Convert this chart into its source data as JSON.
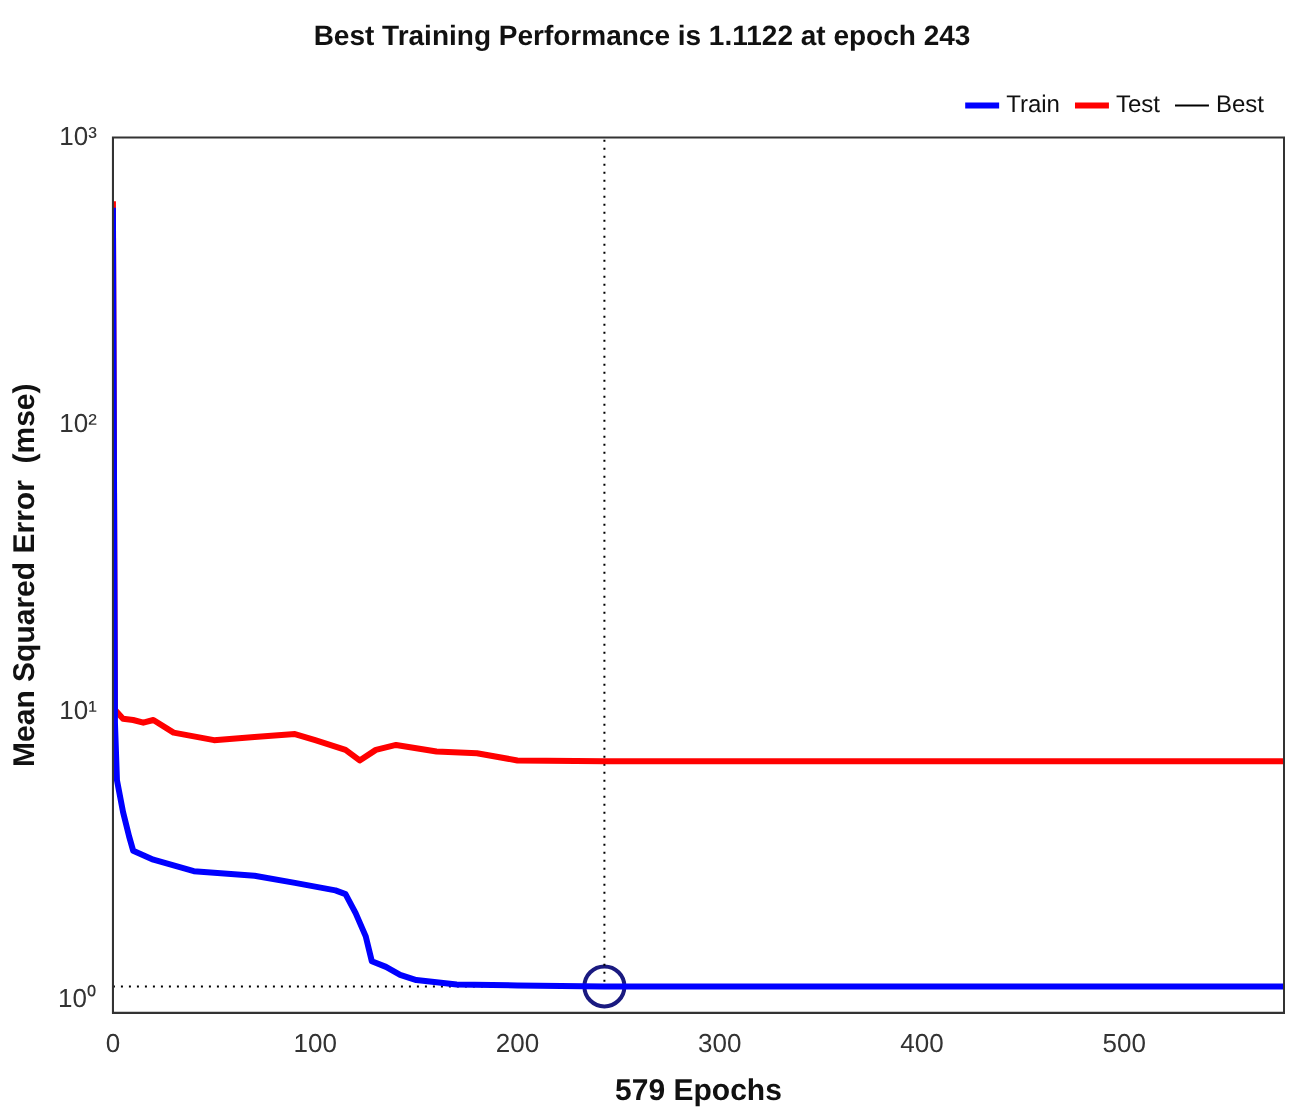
{
  "chart_data": {
    "type": "line",
    "title": "Best Training Performance is 1.1122 at epoch 243",
    "xlabel": "579 Epochs",
    "ylabel": "Mean Squared Error  (mse)",
    "log": "y",
    "xlim": [
      0,
      579
    ],
    "xticks": [
      0,
      100,
      200,
      300,
      400,
      500
    ],
    "ylim": [
      0.9,
      1000
    ],
    "yticks": [
      {
        "value": 1,
        "label": "10⁰"
      },
      {
        "value": 10,
        "label": "10¹"
      },
      {
        "value": 100,
        "label": "10²"
      },
      {
        "value": 1000,
        "label": "10³"
      }
    ],
    "grid": false,
    "legend": "top right",
    "marker": "none",
    "series": [
      {
        "name": "Train",
        "color": "#0000ff",
        "line_style": "solid",
        "x": [
          0,
          1,
          2,
          5,
          8,
          10,
          20,
          40,
          70,
          90,
          110,
          115,
          120,
          125,
          128,
          135,
          142,
          150,
          170,
          200,
          243,
          300,
          400,
          500,
          579
        ],
        "values": [
          570,
          9.2,
          5.8,
          4.5,
          3.7,
          3.3,
          3.07,
          2.8,
          2.7,
          2.55,
          2.4,
          2.33,
          2.0,
          1.66,
          1.36,
          1.3,
          1.22,
          1.17,
          1.13,
          1.12,
          1.1122,
          1.1122,
          1.1122,
          1.1122,
          1.1122
        ]
      },
      {
        "name": "Test",
        "color": "#ff0000",
        "line_style": "solid",
        "x": [
          0,
          1,
          5,
          10,
          15,
          20,
          30,
          50,
          70,
          90,
          100,
          115,
          122,
          130,
          140,
          160,
          180,
          200,
          243,
          300,
          400,
          500,
          579
        ],
        "values": [
          600,
          10.2,
          9.5,
          9.4,
          9.2,
          9.4,
          8.5,
          8.0,
          8.2,
          8.4,
          8.0,
          7.4,
          6.8,
          7.4,
          7.7,
          7.3,
          7.2,
          6.8,
          6.75,
          6.75,
          6.75,
          6.75,
          6.75
        ]
      },
      {
        "name": "Best",
        "color": "#000000",
        "line_style": "dotted",
        "x": [
          0,
          243,
          243
        ],
        "values": [
          1.1122,
          1.1122,
          1000
        ]
      },
      {
        "type": "scatter",
        "color": "#1a1a80",
        "marker": "circle",
        "x": [
          243
        ],
        "values": [
          1.1122
        ]
      }
    ]
  }
}
